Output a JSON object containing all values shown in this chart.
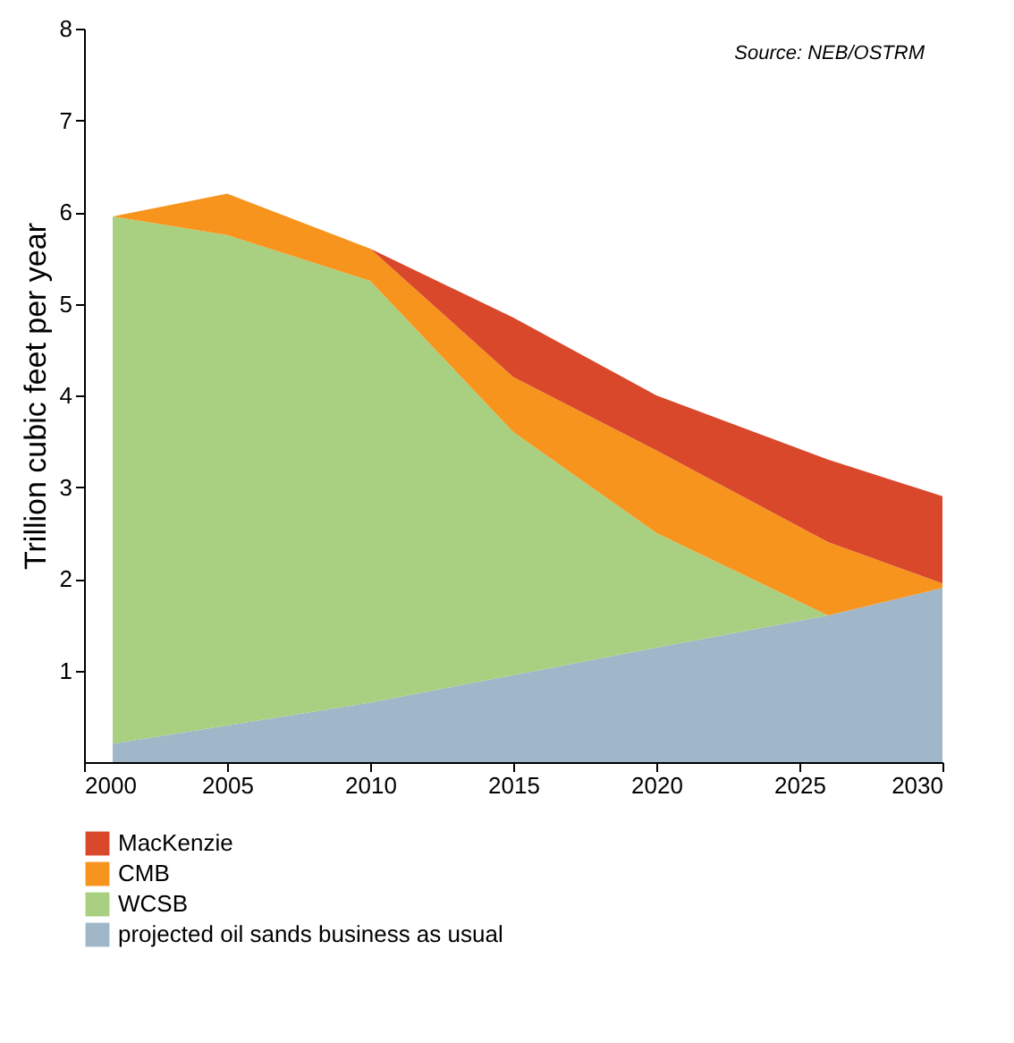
{
  "chart_data": {
    "type": "area",
    "stacked": true,
    "ylabel": "Trillion cubic feet per year",
    "x": [
      2001,
      2005,
      2010,
      2015,
      2020,
      2026,
      2030
    ],
    "series": [
      {
        "name": "projected oil sands business as usual",
        "color": "#9fb7c8",
        "values": [
          0.2,
          0.4,
          0.65,
          0.95,
          1.25,
          1.6,
          1.9
        ]
      },
      {
        "name": "WCSB",
        "color": "#a9cf80",
        "values": [
          5.75,
          5.35,
          4.6,
          2.65,
          1.25,
          0,
          0
        ]
      },
      {
        "name": "CMB",
        "color": "#f7941d",
        "values": [
          0,
          0.45,
          0.35,
          0.6,
          0.9,
          0.8,
          0.05
        ]
      },
      {
        "name": "MacKenzie",
        "color": "#d9482b",
        "values": [
          0,
          0,
          0,
          0.65,
          0.6,
          0.9,
          0.95
        ]
      }
    ],
    "xlim": [
      2000,
      2030
    ],
    "xticks": [
      2000,
      2005,
      2010,
      2015,
      2020,
      2025,
      2030
    ],
    "ylim": [
      0,
      8
    ],
    "yticks": [
      1,
      2,
      3,
      4,
      5,
      6,
      7,
      8
    ],
    "grid": false,
    "legend": "bottom",
    "annotations": [
      "Source: NEB/OSTRM"
    ]
  }
}
